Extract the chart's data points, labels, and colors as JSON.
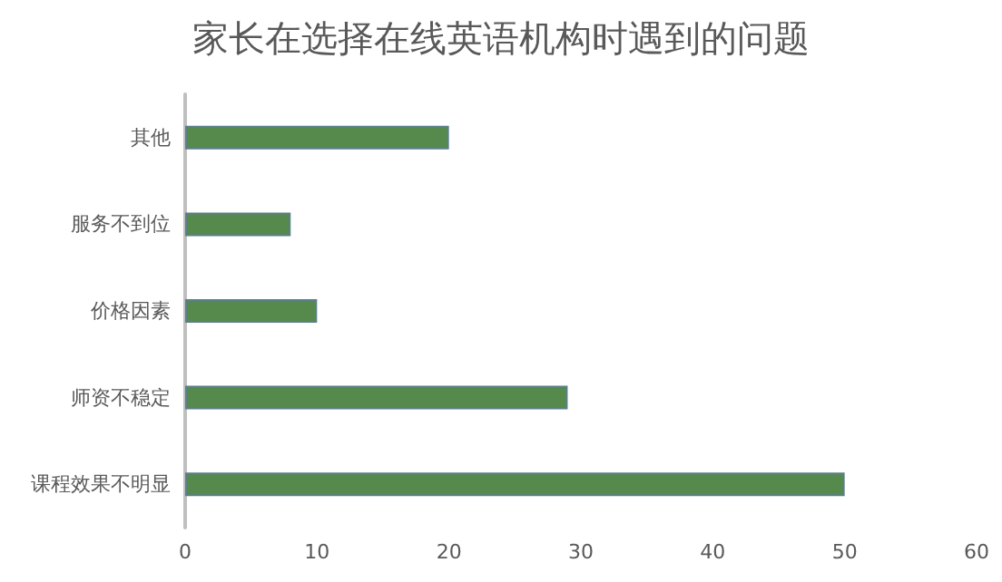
{
  "chart_data": {
    "type": "bar",
    "orientation": "horizontal",
    "title": "家长在选择在线英语机构时遇到的问题",
    "categories": [
      "其他",
      "服务不到位",
      "价格因素",
      "师资不稳定",
      "课程效果不明显"
    ],
    "values": [
      20,
      8,
      10,
      29,
      50
    ],
    "color": "#558a4c",
    "xlim": [
      0,
      60
    ],
    "xticks": [
      0,
      10,
      20,
      30,
      40,
      50,
      60
    ],
    "grid": false
  }
}
